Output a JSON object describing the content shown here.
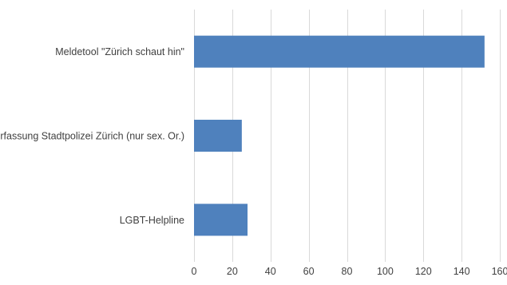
{
  "chart_data": {
    "type": "bar",
    "orientation": "horizontal",
    "categories": [
      "Meldetool \"Zürich schaut hin\"",
      "Erfassung Stadtpolizei Zürich (nur sex. Or.)",
      "LGBT-Helpline"
    ],
    "values": [
      152,
      25,
      28
    ],
    "xlim": [
      0,
      160
    ],
    "x_ticks": [
      0,
      20,
      40,
      60,
      80,
      100,
      120,
      140,
      160
    ],
    "title": "",
    "xlabel": "",
    "ylabel": "",
    "grid": "vertical",
    "legend": "none",
    "bar_color": "#4f81bd"
  }
}
